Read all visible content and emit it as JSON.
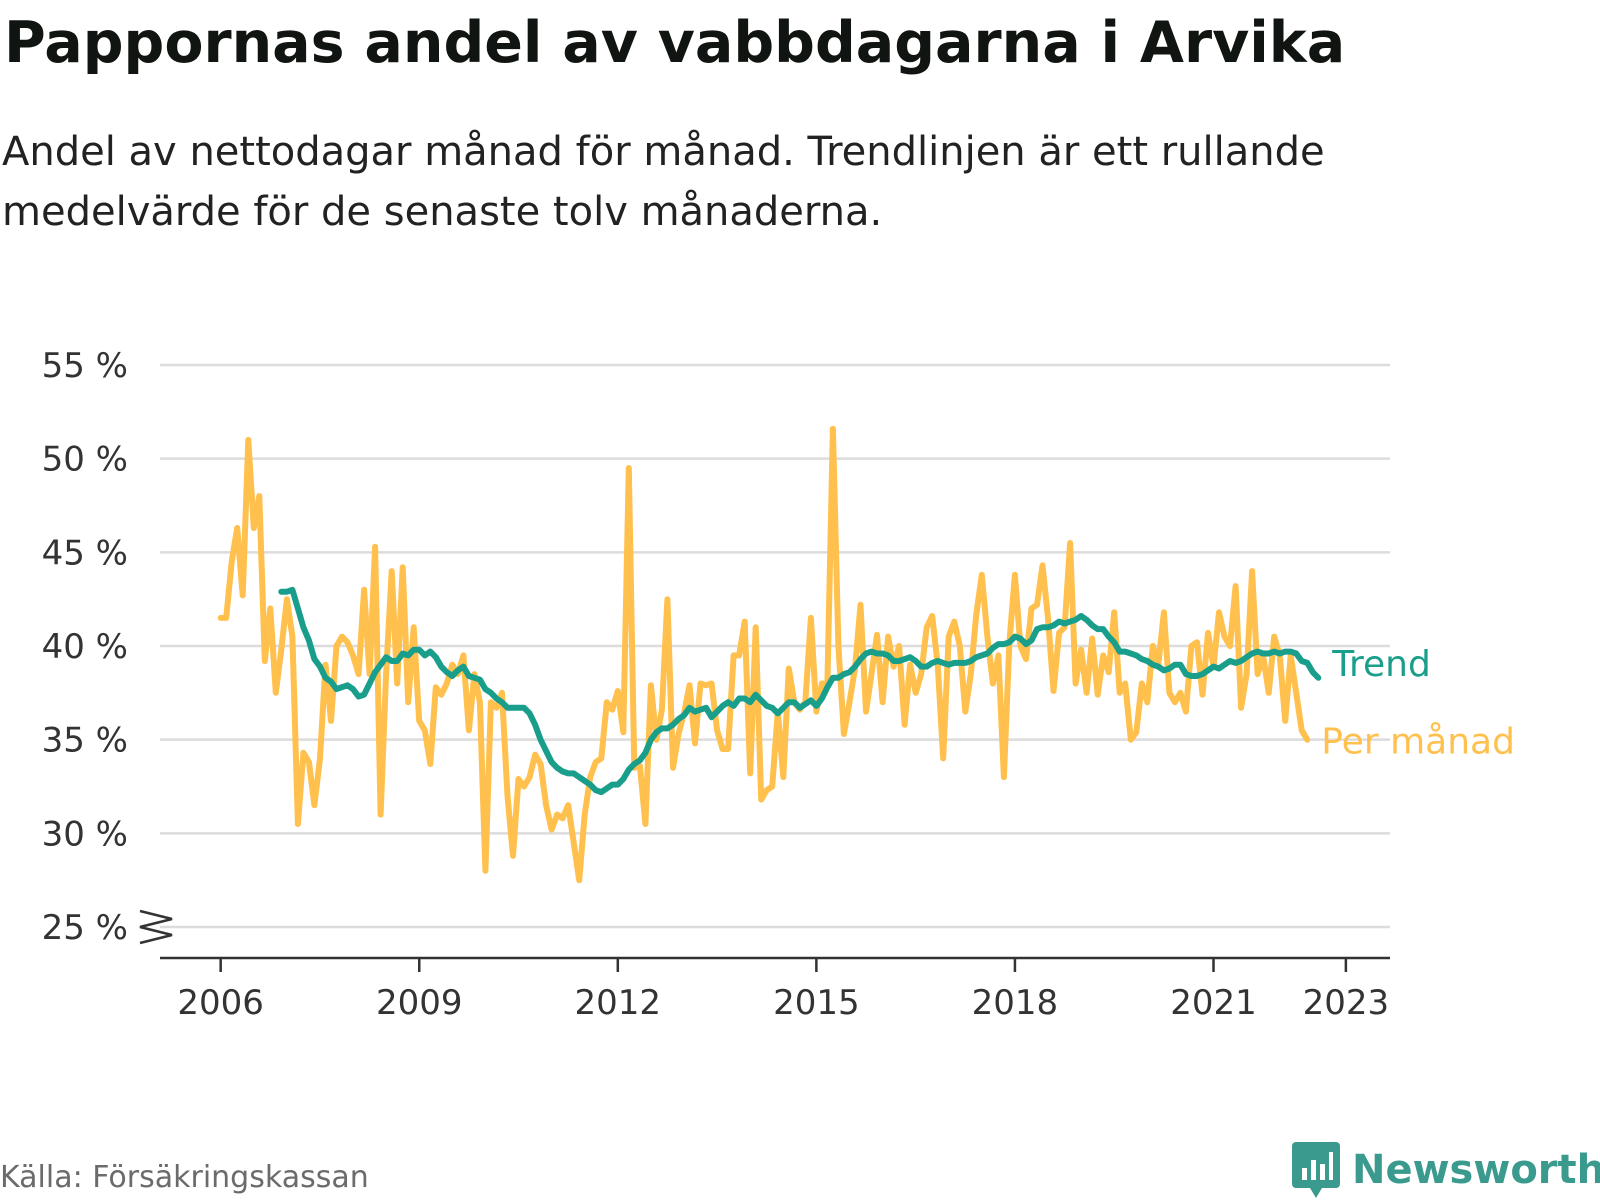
{
  "title": "Pappornas andel av vabbdagarna i Arvika",
  "subtitle": "Andel av nettodagar månad för månad. Trendlinjen är ett rullande medelvärde för de senaste tolv månaderna.",
  "source": "Källa: Försäkringskassan",
  "brand": "Newsworthy",
  "colors": {
    "trend": "#1a9e8c",
    "monthly": "#ffc04d",
    "grid": "#dcdcdc",
    "axis": "#333333",
    "brand": "#3a9a8e"
  },
  "chart_data": {
    "type": "line",
    "title": "Pappornas andel av vabbdagarna i Arvika",
    "xlabel": "",
    "ylabel": "",
    "ylim": [
      25,
      55
    ],
    "yticks": [
      {
        "value": 55,
        "label": "55 %"
      },
      {
        "value": 50,
        "label": "50 %"
      },
      {
        "value": 45,
        "label": "45 %"
      },
      {
        "value": 40,
        "label": "40 %"
      },
      {
        "value": 35,
        "label": "35 %"
      },
      {
        "value": 30,
        "label": "30 %"
      },
      {
        "value": 25,
        "label": "25 %"
      }
    ],
    "xlim": [
      "2005-02",
      "2023-09"
    ],
    "xticks": [
      {
        "value": "2006-01",
        "label": "2006"
      },
      {
        "value": "2009-01",
        "label": "2009"
      },
      {
        "value": "2012-01",
        "label": "2012"
      },
      {
        "value": "2015-01",
        "label": "2015"
      },
      {
        "value": "2018-01",
        "label": "2018"
      },
      {
        "value": "2021-01",
        "label": "2021"
      },
      {
        "value": "2023-01",
        "label": "2023"
      }
    ],
    "y_axis_break": true,
    "grid": true,
    "legend": "direct labels at line ends",
    "series": [
      {
        "name": "Per månad",
        "color": "#ffc04d",
        "start": "2006-01",
        "values": [
          41.5,
          41.5,
          44.5,
          46.3,
          42.7,
          51.0,
          46.3,
          48.0,
          39.2,
          42.0,
          37.5,
          39.8,
          42.5,
          40.5,
          30.5,
          34.3,
          33.8,
          31.5,
          34.0,
          39.0,
          36.0,
          40.0,
          40.5,
          40.2,
          39.5,
          38.5,
          43.0,
          38.5,
          45.3,
          31.0,
          38.5,
          44.0,
          38.0,
          44.2,
          37.0,
          41.0,
          36.0,
          35.5,
          33.7,
          37.8,
          37.4,
          38.0,
          39.0,
          38.5,
          39.5,
          35.5,
          38.5,
          37.0,
          28.0,
          37.0,
          36.7,
          37.5,
          32.0,
          28.8,
          32.9,
          32.5,
          33.0,
          34.2,
          33.7,
          31.5,
          30.2,
          31.0,
          30.8,
          31.5,
          29.5,
          27.5,
          31.0,
          33.0,
          33.8,
          34.0,
          37.0,
          36.6,
          37.6,
          35.4,
          49.5,
          33.5,
          33.6,
          30.5,
          37.9,
          35.0,
          36.6,
          42.5,
          33.5,
          35.3,
          36.4,
          37.9,
          34.8,
          38.0,
          37.9,
          38.0,
          35.5,
          34.5,
          34.5,
          39.5,
          39.5,
          41.3,
          33.2,
          41.0,
          31.8,
          32.3,
          32.5,
          36.5,
          33.0,
          38.8,
          37.0,
          36.6,
          37.0,
          41.5,
          36.5,
          38.0,
          38.0,
          51.6,
          40.0,
          35.3,
          37.0,
          38.8,
          42.2,
          36.5,
          38.5,
          40.6,
          37.0,
          40.5,
          38.9,
          40.0,
          35.8,
          39.0,
          37.5,
          38.5,
          41.0,
          41.6,
          39.0,
          34.0,
          40.5,
          41.3,
          40.0,
          36.5,
          38.5,
          41.7,
          43.8,
          40.5,
          38.0,
          39.5,
          33.0,
          40.2,
          43.8,
          40.0,
          39.3,
          42.0,
          42.2,
          44.3,
          41.5,
          37.6,
          40.7,
          41.0,
          45.5,
          38.0,
          39.8,
          37.5,
          40.4,
          37.4,
          39.5,
          38.6,
          41.8,
          37.5,
          38.0,
          35.0,
          35.4,
          38.0,
          37.0,
          40.0,
          39.0,
          41.8,
          37.5,
          37.0,
          37.5,
          36.5,
          40.0,
          40.2,
          37.4,
          40.7,
          38.9,
          41.8,
          40.5,
          40.0,
          43.2,
          36.7,
          38.5,
          44.0,
          38.5,
          39.5,
          37.5,
          40.5,
          39.5,
          36.0,
          39.5,
          37.5,
          35.5,
          35.0
        ]
      },
      {
        "name": "Trend",
        "color": "#1a9e8c",
        "start": "2006-12",
        "values": [
          42.9,
          42.9,
          43.0,
          42.0,
          41.0,
          40.3,
          39.3,
          38.9,
          38.3,
          38.1,
          37.7,
          37.8,
          37.9,
          37.7,
          37.3,
          37.4,
          38.0,
          38.6,
          39.0,
          39.4,
          39.2,
          39.2,
          39.6,
          39.5,
          39.8,
          39.8,
          39.5,
          39.7,
          39.4,
          38.9,
          38.6,
          38.4,
          38.7,
          38.9,
          38.4,
          38.3,
          38.2,
          37.7,
          37.5,
          37.2,
          37.0,
          36.7,
          36.7,
          36.7,
          36.7,
          36.4,
          35.8,
          35.0,
          34.4,
          33.8,
          33.5,
          33.3,
          33.2,
          33.2,
          33.0,
          32.8,
          32.6,
          32.3,
          32.2,
          32.4,
          32.6,
          32.6,
          32.9,
          33.4,
          33.7,
          33.9,
          34.3,
          35.0,
          35.4,
          35.6,
          35.6,
          35.8,
          36.1,
          36.3,
          36.7,
          36.5,
          36.6,
          36.7,
          36.2,
          36.5,
          36.8,
          37.0,
          36.8,
          37.2,
          37.2,
          37.0,
          37.4,
          37.1,
          36.8,
          36.7,
          36.4,
          36.7,
          37.0,
          37.0,
          36.7,
          36.9,
          37.1,
          36.8,
          37.2,
          37.8,
          38.3,
          38.3,
          38.5,
          38.6,
          38.9,
          39.3,
          39.6,
          39.7,
          39.6,
          39.6,
          39.5,
          39.2,
          39.2,
          39.3,
          39.4,
          39.2,
          38.9,
          38.9,
          39.1,
          39.2,
          39.1,
          39.0,
          39.1,
          39.1,
          39.1,
          39.2,
          39.4,
          39.5,
          39.6,
          39.9,
          40.1,
          40.1,
          40.2,
          40.5,
          40.4,
          40.1,
          40.3,
          40.9,
          41.0,
          41.0,
          41.1,
          41.3,
          41.2,
          41.3,
          41.4,
          41.6,
          41.4,
          41.1,
          40.9,
          40.9,
          40.5,
          40.2,
          39.7,
          39.7,
          39.6,
          39.5,
          39.3,
          39.2,
          39.0,
          38.9,
          38.7,
          38.8,
          39.0,
          39.0,
          38.5,
          38.4,
          38.4,
          38.5,
          38.7,
          38.9,
          38.8,
          39.0,
          39.2,
          39.1,
          39.2,
          39.4,
          39.6,
          39.7,
          39.6,
          39.6,
          39.7,
          39.6,
          39.7,
          39.7,
          39.6,
          39.2,
          39.1,
          38.6,
          38.3
        ]
      }
    ]
  }
}
